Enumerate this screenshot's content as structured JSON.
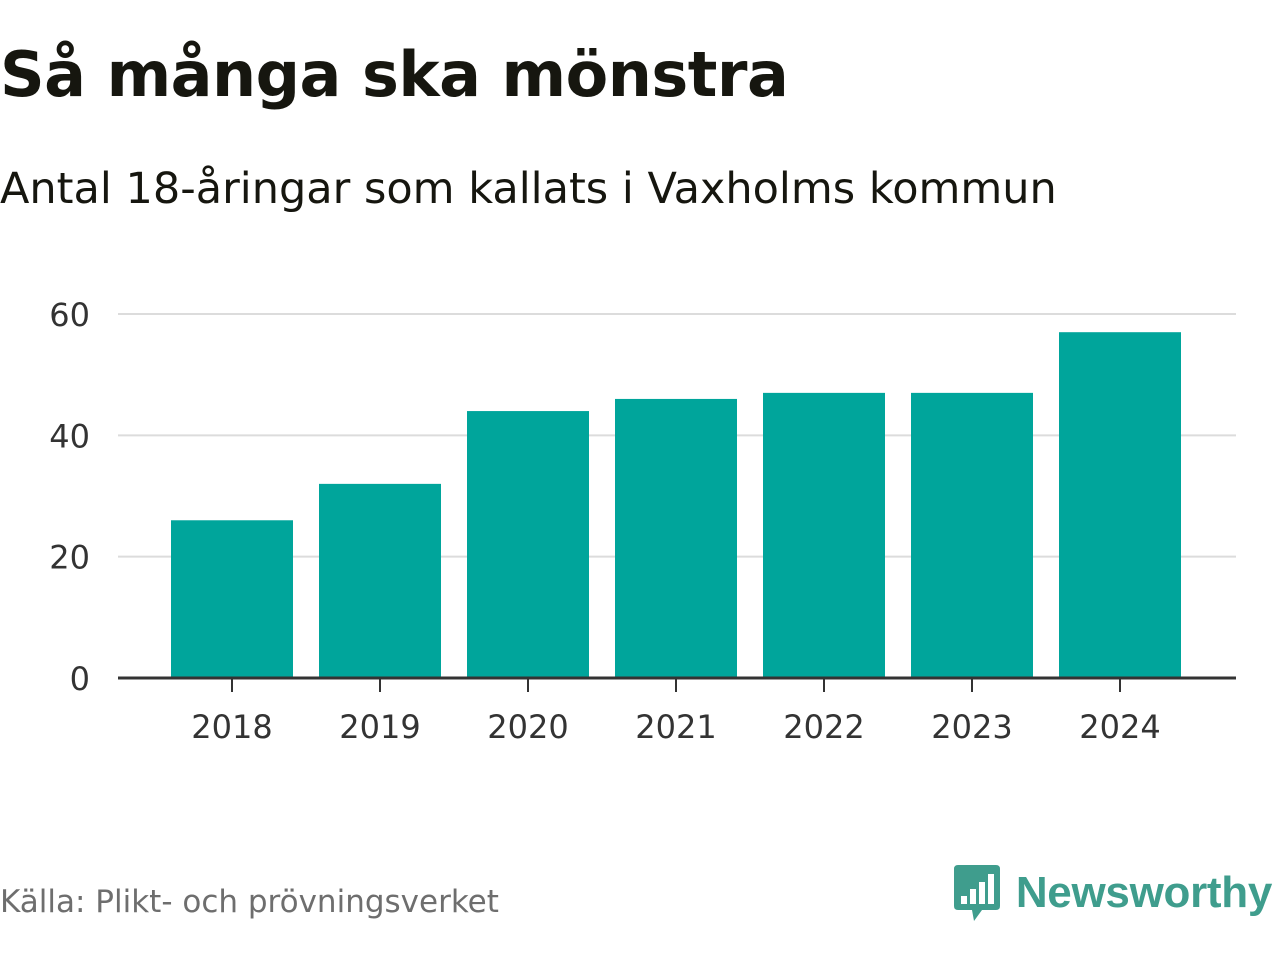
{
  "header": {
    "title": "Så många ska mönstra",
    "subtitle": "Antal 18-åringar som kallats i Vaxholms kommun"
  },
  "chart_data": {
    "type": "bar",
    "categories": [
      "2018",
      "2019",
      "2020",
      "2021",
      "2022",
      "2023",
      "2024"
    ],
    "values": [
      26,
      32,
      44,
      46,
      47,
      47,
      57
    ],
    "title": "Så många ska mönstra",
    "subtitle": "Antal 18-åringar som kallats i Vaxholms kommun",
    "xlabel": "",
    "ylabel": "",
    "ylim": [
      0,
      60
    ],
    "yticks": [
      0,
      20,
      40,
      60
    ],
    "grid": true,
    "legend": "none",
    "bar_color": "#00a59b"
  },
  "footer": {
    "source": "Källa: Plikt- och prövningsverket",
    "brand": "Newsworthy",
    "brand_icon": "newsworthy-logo-icon",
    "brand_color": "#3f9d8d"
  }
}
